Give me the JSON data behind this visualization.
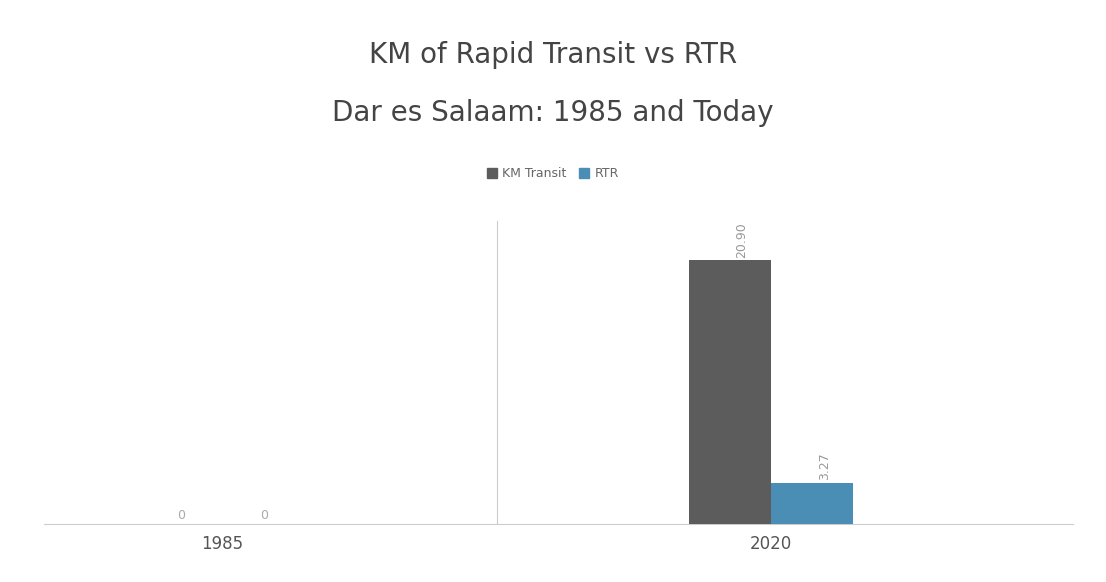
{
  "title_line1": "KM of Rapid Transit vs RTR",
  "title_line2": "Dar es Salaam: 1985 and Today",
  "categories": [
    "1985",
    "2020"
  ],
  "km_transit": [
    0,
    20.9
  ],
  "rtr": [
    0,
    3.27
  ],
  "bar_color_transit": "#5c5c5c",
  "bar_color_rtr": "#4a8db5",
  "bar_width": 0.3,
  "group_positions": [
    1,
    3
  ],
  "legend_labels": [
    "KM Transit",
    "RTR"
  ],
  "title_fontsize": 20,
  "label_fontsize": 9,
  "tick_fontsize": 12,
  "annotation_color_zero": "#aaaaaa",
  "annotation_color_value": "#999999",
  "background_color": "#ffffff",
  "ylim": [
    0,
    24
  ],
  "xlim": [
    0.35,
    4.1
  ],
  "divider_x": 2.0
}
